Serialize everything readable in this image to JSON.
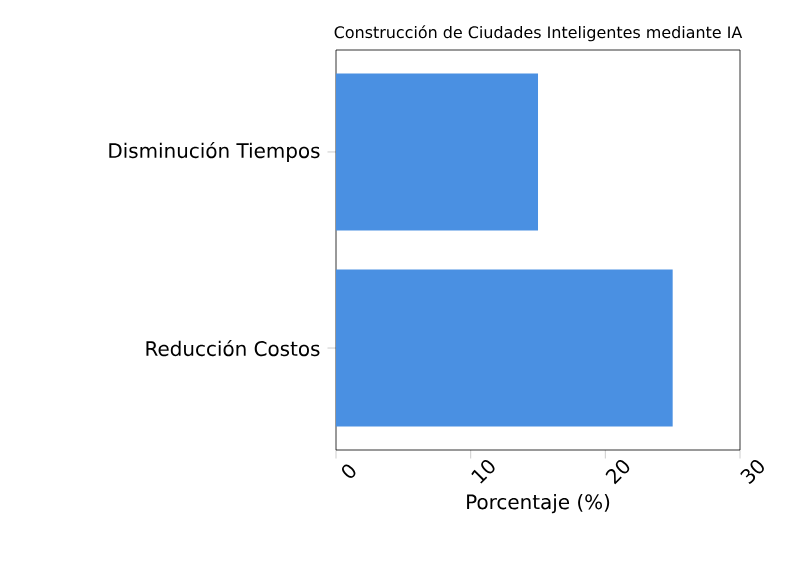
{
  "chart_data": {
    "type": "bar",
    "orientation": "horizontal",
    "title": "Construcción de Ciudades Inteligentes mediante IA",
    "xlabel": "Porcentaje (%)",
    "categories": [
      "Disminución Tiempos",
      "Reducción Costos"
    ],
    "values": [
      15,
      25
    ],
    "color": "#4a90e2",
    "xlim": [
      0,
      30
    ],
    "xticks": [
      0,
      10,
      20,
      30
    ],
    "grid": false
  }
}
